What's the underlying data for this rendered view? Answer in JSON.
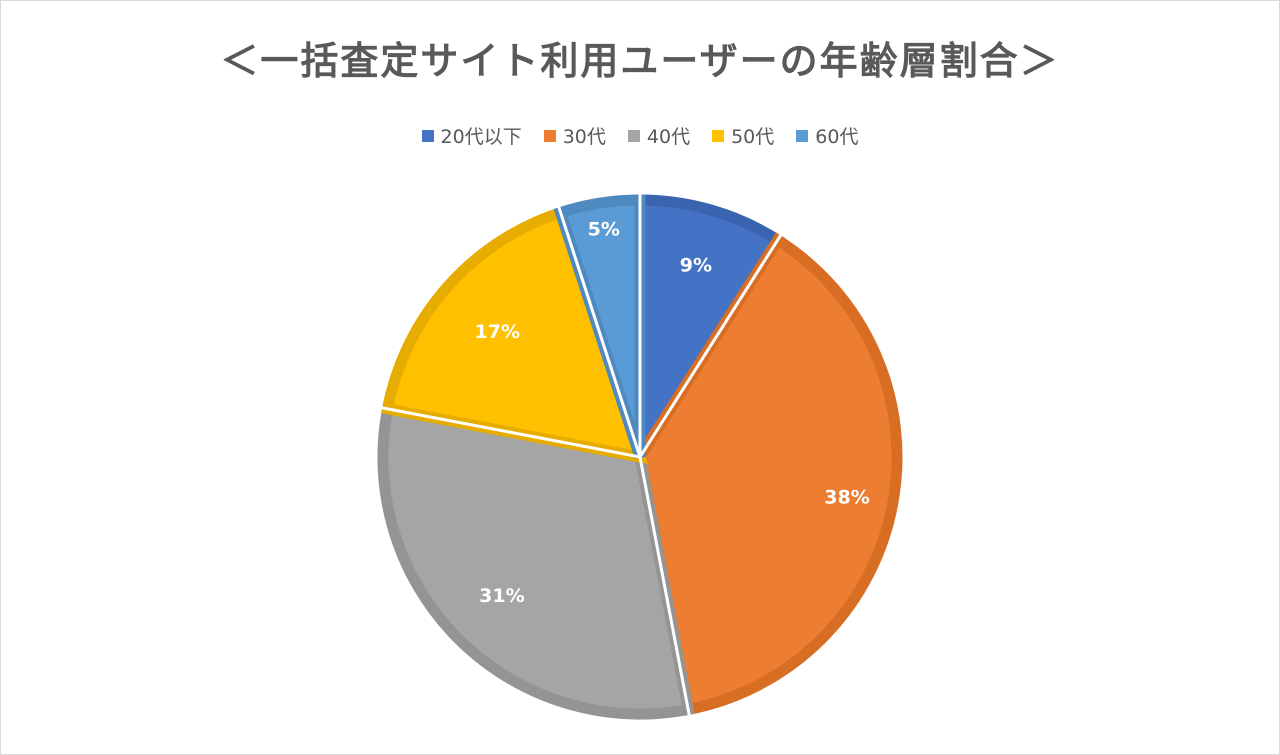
{
  "chart_data": {
    "type": "pie",
    "title": "＜一括査定サイト利用ユーザーの年齢層割合＞",
    "categories": [
      "20代以下",
      "30代",
      "40代",
      "50代",
      "60代"
    ],
    "values": [
      9,
      38,
      31,
      17,
      5
    ],
    "data_labels": [
      "9%",
      "38%",
      "31%",
      "17%",
      "5%"
    ],
    "colors": [
      "#4472c4",
      "#ed7d31",
      "#a5a5a5",
      "#ffc000",
      "#5b9bd5"
    ],
    "border_colors": [
      "#3a64b0",
      "#d86d24",
      "#949494",
      "#e6ac00",
      "#4e89c0"
    ],
    "legend_position": "top",
    "start_angle": "12 o'clock",
    "direction": "clockwise"
  }
}
